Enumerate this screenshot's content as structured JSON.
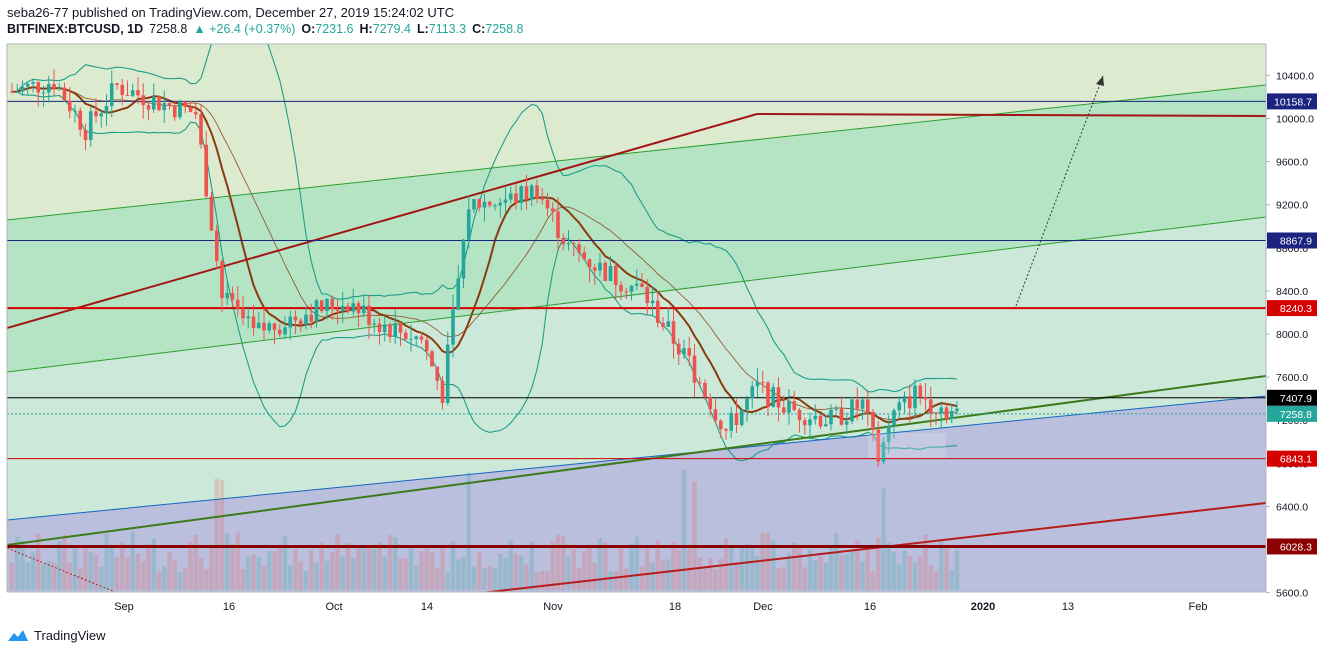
{
  "header": {
    "published": "seba26-77 published on TradingView.com, December 27, 2019 15:24:02 UTC",
    "symbol": "BITFINEX:BTCUSD, 1D",
    "last": "7258.8",
    "change": "▲ +26.4 (+0.37%)",
    "o_label": "O:",
    "o": "7231.6",
    "h_label": "H:",
    "h": "7279.4",
    "l_label": "L:",
    "l": "7113.3",
    "c_label": "C:",
    "c": "7258.8"
  },
  "footer": {
    "brand": "TradingView"
  },
  "colors": {
    "up": "#26a69a",
    "down": "#ef5350",
    "ma": "#8b3a0f",
    "bb": "#1e9e8a",
    "blue_level": "#1a237e",
    "red_level": "#d50000",
    "dark_red": "#8b0000",
    "green_line": "#3d7a1a"
  },
  "chart_data": {
    "type": "candlestick",
    "symbol": "BITFINEX:BTCUSD",
    "interval": "1D",
    "x_ticks": [
      "Sep",
      "16",
      "Oct",
      "14",
      "Nov",
      "18",
      "Dec",
      "16",
      "2020",
      "13",
      "Feb"
    ],
    "y_ticks": [
      5600,
      6000,
      6400,
      6800,
      7200,
      7600,
      8000,
      8400,
      8800,
      9200,
      9600,
      10000,
      10400
    ],
    "y_range": [
      5580,
      10900
    ],
    "price_labels": [
      {
        "text": "10158.7",
        "value": 10158.7,
        "color": "#1a237e"
      },
      {
        "text": "8867.9",
        "value": 8867.9,
        "color": "#1a237e"
      },
      {
        "text": "8240.3",
        "value": 8240.3,
        "color": "#d50000"
      },
      {
        "text": "7407.9",
        "value": 7407.9,
        "color": "#000000"
      },
      {
        "text": "7258.8",
        "value": 7258.8,
        "color": "#26a69a"
      },
      {
        "text": "6843.1",
        "value": 6843.1,
        "color": "#d50000"
      },
      {
        "text": "6028.3",
        "value": 6028.3,
        "color": "#8b0000"
      }
    ],
    "horizontal_levels": [
      10158.7,
      8867.9,
      8240.3,
      7407.9,
      7258.8,
      6843.1,
      6028.3
    ],
    "last_close": 7258.8,
    "ohlc_summary": {
      "open": 7231.6,
      "high": 7279.4,
      "low": 7113.3,
      "close": 7258.8,
      "change": 26.4,
      "change_pct": 0.37
    }
  }
}
